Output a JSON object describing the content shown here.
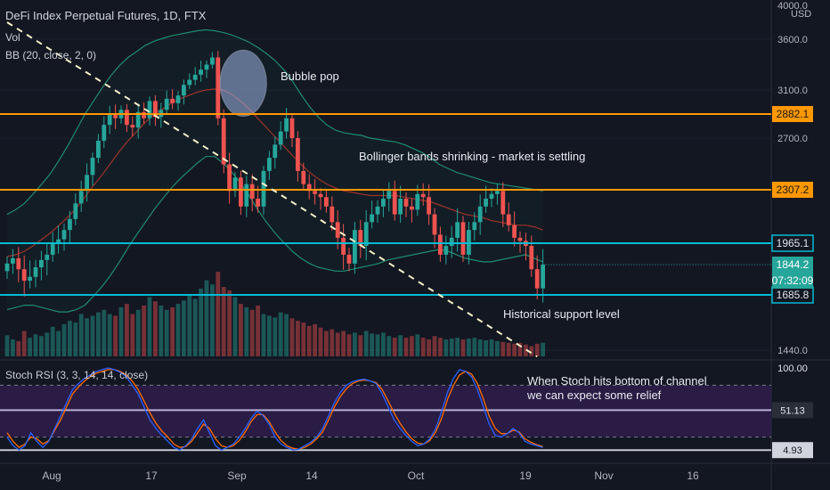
{
  "header": {
    "title": "DeFi Index Perpetual Futures, 1D, FTX",
    "vol_label": "Vol",
    "bb_label": "BB (20, close, 2, 0)",
    "currency": "USD",
    "stoch_label": "Stoch RSI (3, 3, 14, 14, close)"
  },
  "annotations": {
    "bubble": "Bubble pop",
    "bollinger": "Bollinger bands shrinking - market is settling",
    "support": "Historical support level",
    "stoch_note": "When Stoch hits bottom of channel we can expect some relief"
  },
  "colors": {
    "background": "#131722",
    "bull": "#26a69a",
    "bear": "#ef5350",
    "resistance": "#ff9800",
    "support": "#00bcd4",
    "bb_band": "#1f8c6e",
    "bb_basis": "#c0392b",
    "stoch_k": "#2962ff",
    "stoch_d": "#ff6d00",
    "stoch_fill": "#3a1f5c"
  },
  "chart_data": {
    "type": "candlestick",
    "ylim": [
      1380,
      4000
    ],
    "y_ticks": [
      "4000.0",
      "3600.0",
      "3100.0",
      "2700.0",
      "1440.0"
    ],
    "x_ticks": [
      "Aug",
      "17",
      "Sep",
      "14",
      "Oct",
      "19",
      "Nov",
      "16"
    ],
    "levels": [
      {
        "label": "2882.1",
        "value": 2882.1,
        "kind": "resistance"
      },
      {
        "label": "2307.2",
        "value": 2307.2,
        "kind": "resistance"
      },
      {
        "label": "1965.1",
        "value": 1965.1,
        "kind": "support"
      },
      {
        "label": "1685.8",
        "value": 1685.8,
        "kind": "support"
      }
    ],
    "last_price": {
      "label": "1844.2",
      "value": 1844.2
    },
    "countdown": "07:32:09",
    "close": [
      1850,
      1880,
      1820,
      1760,
      1780,
      1830,
      1870,
      1900,
      1960,
      1990,
      2050,
      2120,
      2220,
      2300,
      2420,
      2550,
      2680,
      2800,
      2880,
      2850,
      2920,
      2800,
      2780,
      2900,
      2850,
      3000,
      2860,
      2920,
      3020,
      2980,
      3050,
      3150,
      3200,
      3250,
      3300,
      3350,
      3420,
      2850,
      2500,
      2300,
      2400,
      2200,
      2350,
      2250,
      2200,
      2450,
      2550,
      2650,
      2750,
      2850,
      2700,
      2450,
      2350,
      2300,
      2280,
      2260,
      2200,
      2100,
      2000,
      1900,
      1850,
      2050,
      1950,
      2100,
      2150,
      2200,
      2250,
      2300,
      2150,
      2250,
      2200,
      2180,
      2280,
      2260,
      2150,
      2020,
      1900,
      1950,
      2000,
      2100,
      1900,
      2050,
      2100,
      2200,
      2250,
      2280,
      2300,
      2150,
      2080,
      2000,
      1980,
      1950,
      1820,
      1720,
      1844
    ],
    "bb_upper": [
      2150,
      2180,
      2220,
      2280,
      2350,
      2430,
      2530,
      2640,
      2760,
      2880,
      3000,
      3120,
      3240,
      3340,
      3420,
      3480,
      3540,
      3580,
      3610,
      3640,
      3660,
      3680,
      3700,
      3710,
      3700,
      3680,
      3650,
      3610,
      3570,
      3520,
      3460,
      3390,
      3300,
      3190,
      3060,
      2950,
      2860,
      2800,
      2760,
      2740,
      2730,
      2720,
      2700,
      2690,
      2680,
      2670,
      2650,
      2620,
      2590,
      2550,
      2500,
      2470,
      2440,
      2420,
      2400,
      2380,
      2360,
      2350,
      2340,
      2330,
      2320,
      2310,
      2300
    ],
    "bb_lower": [
      1620,
      1630,
      1640,
      1640,
      1630,
      1620,
      1610,
      1610,
      1620,
      1640,
      1680,
      1730,
      1790,
      1860,
      1940,
      2020,
      2100,
      2180,
      2250,
      2320,
      2390,
      2450,
      2510,
      2560,
      2560,
      2510,
      2440,
      2360,
      2270,
      2180,
      2100,
      2030,
      1970,
      1920,
      1880,
      1850,
      1830,
      1820,
      1810,
      1810,
      1820,
      1830,
      1840,
      1850,
      1870,
      1880,
      1890,
      1900,
      1910,
      1920,
      1930,
      1920,
      1900,
      1880,
      1870,
      1860,
      1860,
      1870,
      1880,
      1890,
      1900,
      1880,
      1860
    ],
    "bb_basis": [
      1890,
      1900,
      1920,
      1950,
      1990,
      2030,
      2080,
      2130,
      2190,
      2260,
      2340,
      2420,
      2510,
      2600,
      2680,
      2750,
      2820,
      2880,
      2930,
      2980,
      3020,
      3050,
      3080,
      3100,
      3110,
      3100,
      3060,
      3000,
      2930,
      2850,
      2780,
      2710,
      2640,
      2570,
      2500,
      2440,
      2390,
      2350,
      2320,
      2300,
      2290,
      2280,
      2270,
      2270,
      2270,
      2270,
      2260,
      2250,
      2240,
      2230,
      2210,
      2190,
      2170,
      2150,
      2140,
      2130,
      2110,
      2100,
      2090,
      2080,
      2080,
      2070,
      2050
    ],
    "volume": [
      0.25,
      0.2,
      0.18,
      0.3,
      0.22,
      0.26,
      0.24,
      0.28,
      0.35,
      0.3,
      0.38,
      0.42,
      0.4,
      0.5,
      0.45,
      0.48,
      0.52,
      0.55,
      0.5,
      0.48,
      0.58,
      0.62,
      0.5,
      0.55,
      0.6,
      0.7,
      0.65,
      0.6,
      0.55,
      0.58,
      0.62,
      0.66,
      0.72,
      0.68,
      0.8,
      0.9,
      0.85,
      1.0,
      0.82,
      0.78,
      0.7,
      0.62,
      0.58,
      0.55,
      0.6,
      0.5,
      0.48,
      0.46,
      0.52,
      0.5,
      0.45,
      0.42,
      0.4,
      0.36,
      0.38,
      0.34,
      0.3,
      0.32,
      0.28,
      0.3,
      0.26,
      0.28,
      0.25,
      0.3,
      0.27,
      0.26,
      0.28,
      0.24,
      0.22,
      0.25,
      0.22,
      0.24,
      0.26,
      0.22,
      0.2,
      0.24,
      0.22,
      0.2,
      0.21,
      0.22,
      0.2,
      0.21,
      0.22,
      0.2,
      0.19,
      0.2,
      0.18,
      0.17,
      0.16,
      0.15,
      0.16,
      0.14,
      0.12,
      0.15,
      0.16
    ],
    "trendline": {
      "from": {
        "x": 0,
        "y": 3800
      },
      "to": {
        "x": 93,
        "y": 1400
      }
    },
    "bubble_circle_at": {
      "x": 38,
      "y": 3500
    },
    "stoch": {
      "ylim": [
        0,
        100
      ],
      "y_ticks": [
        "100.00",
        "51.13",
        "4.93"
      ],
      "bands": [
        80,
        20
      ],
      "k": [
        20,
        10,
        5,
        10,
        25,
        15,
        8,
        15,
        30,
        45,
        60,
        75,
        82,
        88,
        92,
        96,
        98,
        100,
        98,
        95,
        90,
        80,
        70,
        55,
        40,
        30,
        22,
        15,
        8,
        5,
        10,
        18,
        30,
        40,
        25,
        10,
        5,
        8,
        12,
        20,
        30,
        42,
        50,
        45,
        35,
        20,
        12,
        8,
        5,
        6,
        10,
        14,
        20,
        30,
        45,
        60,
        72,
        80,
        84,
        86,
        87,
        85,
        82,
        70,
        55,
        40,
        30,
        22,
        15,
        10,
        12,
        18,
        30,
        50,
        72,
        88,
        98,
        96,
        90,
        75,
        55,
        35,
        22,
        20,
        24,
        30,
        25,
        15,
        12,
        10,
        8
      ],
      "d": [
        25,
        15,
        8,
        12,
        20,
        18,
        12,
        16,
        28,
        40,
        55,
        70,
        78,
        85,
        90,
        94,
        96,
        98,
        98,
        96,
        92,
        85,
        75,
        62,
        48,
        36,
        27,
        20,
        12,
        8,
        9,
        15,
        25,
        35,
        30,
        18,
        10,
        8,
        10,
        16,
        26,
        38,
        46,
        46,
        38,
        26,
        16,
        10,
        7,
        6,
        8,
        12,
        18,
        26,
        40,
        55,
        67,
        76,
        82,
        85,
        86,
        85,
        83,
        75,
        62,
        48,
        36,
        26,
        18,
        13,
        12,
        16,
        26,
        42,
        64,
        80,
        92,
        96,
        93,
        82,
        64,
        44,
        30,
        24,
        24,
        28,
        26,
        18,
        14,
        11,
        9
      ]
    }
  }
}
